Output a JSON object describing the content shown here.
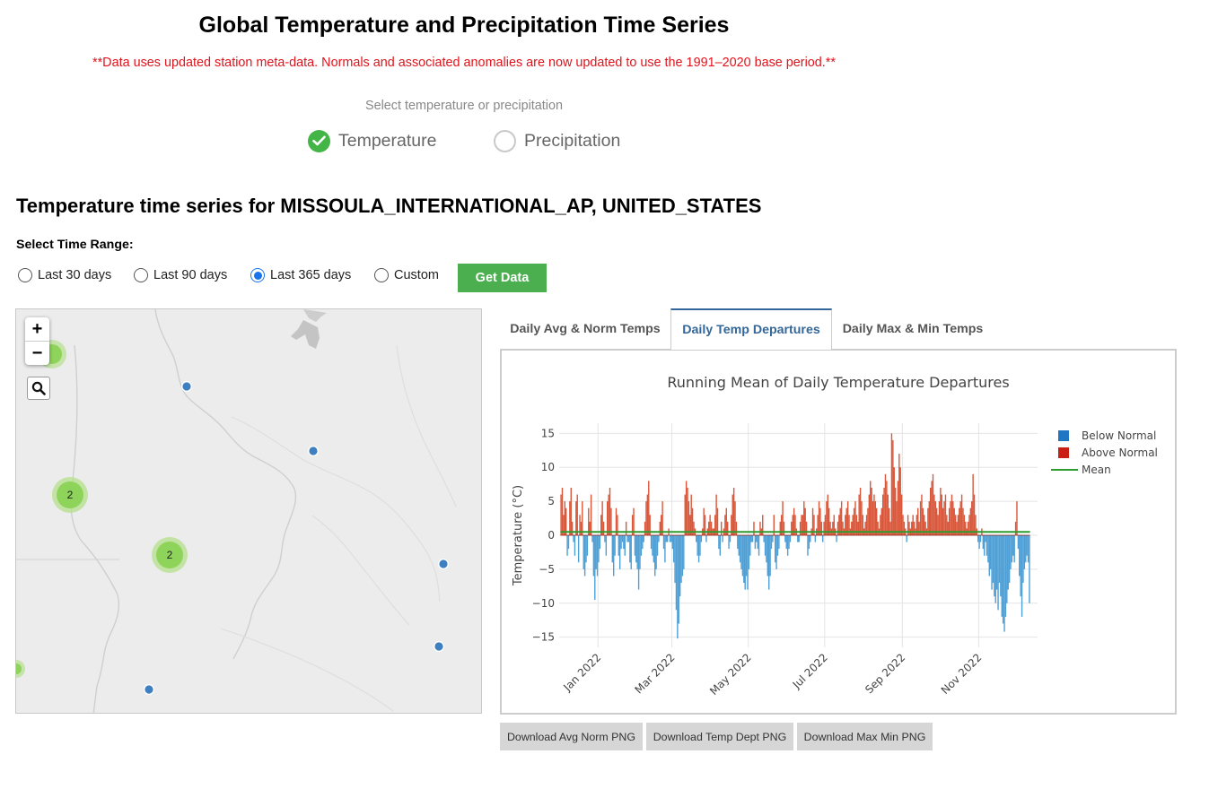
{
  "page": {
    "title": "Global Temperature and Precipitation Time Series",
    "notice": "**Data uses updated station meta-data. Normals and associated anomalies are now updated to use the 1991–2020 base period.**",
    "select_prompt": "Select temperature or precipitation"
  },
  "mode_options": [
    {
      "label": "Temperature",
      "selected": true
    },
    {
      "label": "Precipitation",
      "selected": false
    }
  ],
  "station_title": "Temperature time series for MISSOULA_INTERNATIONAL_AP, UNITED_STATES",
  "time_range": {
    "label": "Select Time Range:",
    "options": [
      {
        "label": "Last 30 days",
        "selected": false
      },
      {
        "label": "Last 90 days",
        "selected": false
      },
      {
        "label": "Last 365 days",
        "selected": true
      },
      {
        "label": "Custom",
        "selected": false
      }
    ],
    "button_label": "Get Data"
  },
  "map": {
    "zoom_in": "+",
    "zoom_out": "−",
    "search_icon": "search-icon",
    "clusters": [
      {
        "count": "2"
      },
      {
        "count": "2"
      }
    ]
  },
  "tabs": [
    {
      "label": "Daily Avg & Norm Temps",
      "active": false
    },
    {
      "label": "Daily Temp Departures",
      "active": true
    },
    {
      "label": "Daily Max & Min Temps",
      "active": false
    }
  ],
  "chart_data": {
    "type": "bar",
    "title": "Running Mean of Daily Temperature Departures",
    "ylabel": "Temperature (°C)",
    "ylim": [
      -16.5,
      16.5
    ],
    "yticks": [
      15,
      10,
      5,
      0,
      -5,
      -10,
      -15
    ],
    "xlim": [
      "2021-12-01",
      "2022-12-18"
    ],
    "xticks": [
      "Jan 2022",
      "Mar 2022",
      "May 2022",
      "Jul 2022",
      "Sep 2022",
      "Nov 2022"
    ],
    "grid": true,
    "legend_position": "top-right",
    "colors": {
      "below": "#4d9fd6",
      "above": "#d9573a",
      "mean": "#2e9b2e"
    },
    "series": [
      {
        "name": "Below Normal",
        "legend_color": "#1f77c4"
      },
      {
        "name": "Above Normal",
        "legend_color": "#c91f14"
      },
      {
        "name": "Mean",
        "value": 0.5
      }
    ],
    "start_date": "2021-12-02",
    "departures": [
      6,
      7,
      3,
      5,
      4,
      -3,
      -2,
      5,
      7,
      2,
      -1,
      -3,
      5,
      6,
      -4,
      3,
      2,
      5,
      -5,
      -6,
      -4,
      -3,
      4,
      2,
      6,
      -1,
      -6,
      -9.5,
      -5,
      -6,
      -4,
      -2,
      3,
      5,
      2,
      -1,
      -3,
      5,
      6,
      7,
      4,
      -4,
      -6,
      -3,
      4,
      3,
      -3,
      -5,
      -2,
      -1,
      -2,
      -3,
      2,
      -1,
      -1,
      -4,
      -5,
      3,
      4,
      -3,
      -4,
      -5,
      -8,
      -5,
      -3,
      -2,
      -1,
      2,
      5,
      6,
      8,
      3,
      -2,
      -3,
      -4,
      -6,
      -5,
      -3,
      -1,
      2,
      3,
      5,
      -2,
      -4,
      -1,
      -1,
      1,
      -1,
      -1,
      -2,
      -4,
      -7,
      -11,
      -15.2,
      -13,
      -9,
      -7,
      -6,
      -5,
      6,
      8,
      7,
      5,
      3,
      6,
      4,
      2,
      1,
      -1,
      -3,
      -4,
      -3,
      -1,
      1,
      4,
      3,
      -1,
      1,
      2,
      3,
      2,
      1,
      1,
      3,
      6,
      4,
      -2,
      -3,
      2,
      -1,
      1,
      3,
      4,
      2,
      -2,
      -1,
      3,
      6,
      7,
      5,
      2,
      -2,
      -3,
      -4,
      -5,
      -6,
      -7,
      -8,
      -6,
      -8,
      -5,
      -3,
      -1,
      -1,
      2,
      -2,
      -1,
      -2,
      -3,
      2,
      1,
      3,
      -1,
      -3,
      -4,
      -6,
      -8,
      -6,
      -2,
      -1,
      3,
      -4,
      -5,
      -3,
      -2,
      2,
      3,
      5,
      2,
      -1,
      -2,
      -3,
      -2,
      -1,
      2,
      3,
      4,
      3,
      1,
      -1,
      -1,
      2,
      3,
      3,
      5,
      4,
      2,
      -3,
      -2,
      -1,
      1,
      4,
      3,
      -1,
      1,
      3,
      5,
      4,
      2,
      -1,
      2,
      3,
      5,
      6,
      4,
      2,
      1,
      2,
      3,
      1,
      -1,
      2,
      3,
      4,
      5,
      2,
      1,
      3,
      4,
      5,
      3,
      1,
      2,
      3,
      4,
      5,
      3,
      2,
      6,
      7,
      5,
      3,
      1,
      2,
      3,
      4,
      6,
      8,
      7,
      5,
      6,
      5,
      4,
      2,
      1,
      3,
      4,
      6,
      7,
      9,
      8,
      6,
      4,
      2,
      15,
      14,
      10,
      7,
      5,
      8,
      12,
      10,
      6,
      3,
      2,
      1,
      -1,
      3,
      2,
      1,
      2,
      3,
      2,
      1,
      3,
      4,
      2,
      5,
      6,
      4,
      3,
      2,
      1,
      4,
      5,
      7,
      8,
      9,
      6,
      5,
      4,
      3,
      5,
      7,
      6,
      4,
      5,
      6,
      3,
      2,
      4,
      5,
      6,
      5,
      4,
      3,
      2,
      3,
      4,
      5,
      6,
      4,
      3,
      2,
      1,
      2,
      3,
      4,
      5,
      9,
      6,
      3,
      1,
      -1,
      -2,
      -1,
      1,
      -2,
      -3,
      -1,
      -3,
      -4,
      -6,
      -5,
      -8,
      -7,
      -9,
      -10,
      -8,
      -11,
      -7,
      -9,
      -12,
      -13,
      -14.2,
      -12,
      -10,
      -8,
      -7,
      -5,
      -4,
      -3,
      -4,
      2,
      5,
      -2,
      -6,
      -9,
      -12,
      -7,
      -5,
      -4,
      -3,
      -4,
      -10
    ]
  },
  "downloads": [
    "Download Avg Norm PNG",
    "Download Temp Dept PNG",
    "Download Max Min PNG"
  ]
}
